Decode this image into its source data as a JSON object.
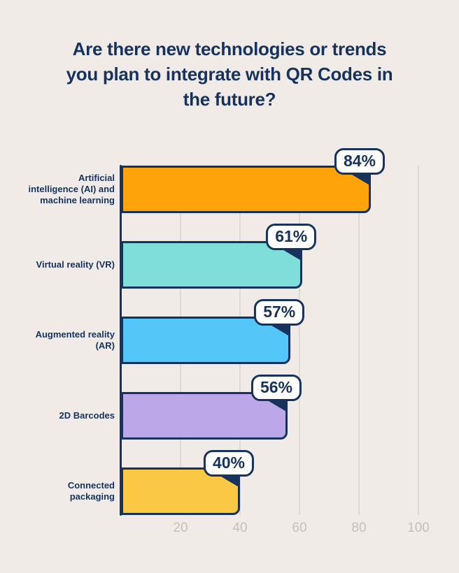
{
  "title": "Are there new technologies or trends you plan to integrate with QR Codes in the future?",
  "title_display": "Are there new technologies or trends\nyou plan to integrate with QR Codes in\nthe future?",
  "chart_data": {
    "type": "bar",
    "orientation": "horizontal",
    "title": "Are there new technologies or trends you plan to integrate with QR Codes in the future?",
    "categories": [
      "Artificial intelligence (AI) and machine learning",
      "Virtual reality (VR)",
      "Augmented reality (AR)",
      "2D Barcodes",
      "Connected packaging"
    ],
    "category_display": [
      "Artificial\nintelligence (AI) and\nmachine learning",
      "Virtual reality (VR)",
      "Augmented reality\n(AR)",
      "2D Barcodes",
      "Connected\npackaging"
    ],
    "values": [
      84,
      61,
      57,
      56,
      40
    ],
    "value_labels": [
      "84%",
      "61%",
      "57%",
      "56%",
      "40%"
    ],
    "bar_colors": [
      "#FEA40A",
      "#7FDEDA",
      "#54C7F8",
      "#BCA7E8",
      "#FAC845"
    ],
    "xlabel": "",
    "ylabel": "",
    "xlim": [
      0,
      100
    ],
    "x_ticks": [
      20,
      40,
      60,
      80,
      100
    ],
    "grid": true,
    "legend": false
  },
  "colors": {
    "background": "#F0EBE6",
    "ink": "#17335D",
    "badge_background": "#FFFFFF",
    "gridline": "#DFD9D3",
    "tick_text": "#C6C0BA"
  }
}
